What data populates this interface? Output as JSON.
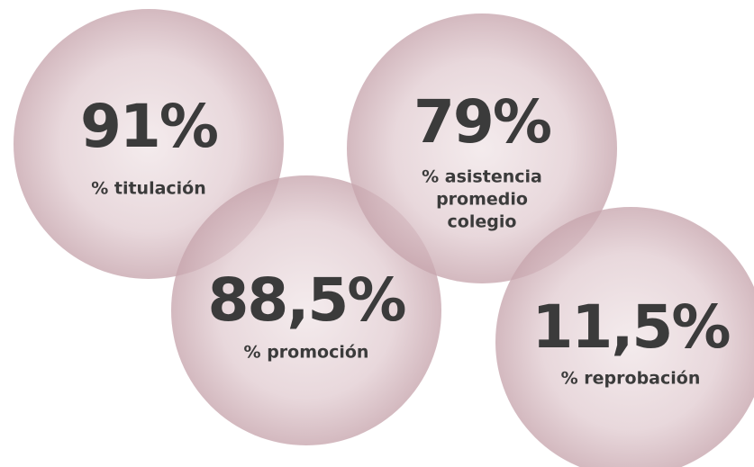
{
  "items": [
    {
      "value": "91%",
      "label": [
        "% titulación"
      ]
    },
    {
      "value": "88,5%",
      "label": [
        "% promoción"
      ]
    },
    {
      "value": "79%",
      "label": [
        "% asistencia",
        "promedio",
        "colegio"
      ]
    },
    {
      "value": "11,5%",
      "label": [
        "% reprobación"
      ]
    }
  ]
}
